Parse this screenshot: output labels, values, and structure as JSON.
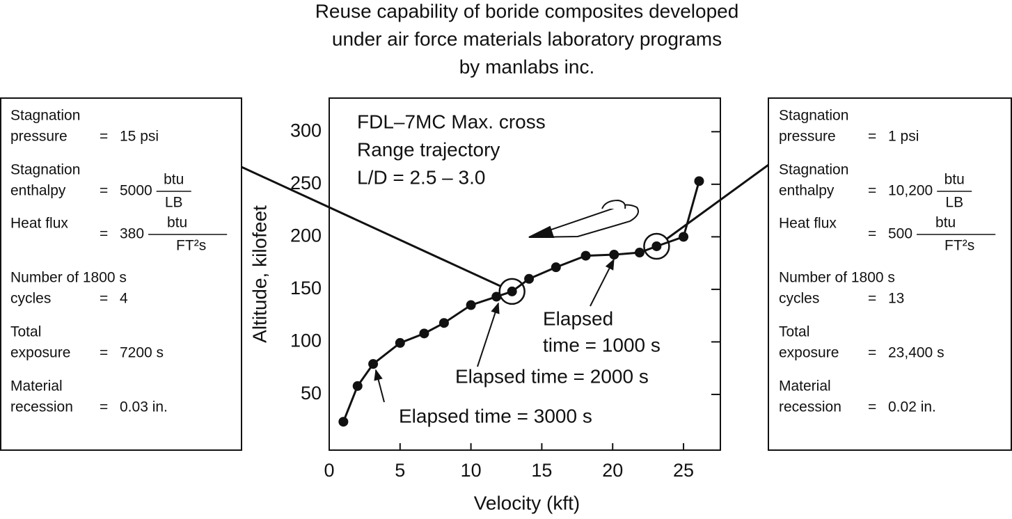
{
  "chart_data": {
    "type": "line",
    "title": [
      "Reuse capability of boride composites developed",
      "under air force materials laboratory programs",
      "by manlabs inc."
    ],
    "x_label": "Velocity (kft)",
    "y_label": "Altitude, kilofeet",
    "annotation": [
      "FDL–7MC Max. cross",
      "Range trajectory",
      "L/D = 2.5 – 3.0"
    ],
    "elapsed_labels": [
      [
        "Elapsed time = 3000 s"
      ],
      [
        "Elapsed time = 2000 s"
      ],
      [
        "Elapsed",
        "time = 1000 s"
      ]
    ],
    "x": [
      1,
      2,
      3.1,
      5,
      6.7,
      8.1,
      10,
      11.8,
      12.9,
      14.1,
      16,
      18.1,
      20.1,
      21.9,
      23.1,
      25,
      26.1
    ],
    "series": [
      {
        "color": "#111111",
        "values": [
          24,
          58,
          79,
          99,
          108,
          118,
          135,
          143,
          148,
          160,
          171,
          182,
          183,
          185,
          191,
          200,
          253
        ]
      }
    ],
    "xlim": [
      0,
      27.6
    ],
    "ylim": [
      -3,
      332
    ],
    "xticks": [
      0,
      5,
      10,
      15,
      20,
      25
    ],
    "yticks": [
      50,
      100,
      150,
      200,
      250,
      300
    ]
  },
  "panels": [
    {
      "sign": "=",
      "rows": [
        {
          "label": [
            "Stagnation",
            "pressure"
          ],
          "value": "15 psi"
        },
        {
          "label": [
            "Stagnation",
            "enthalpy"
          ],
          "value": "5000",
          "unit_num": "btu",
          "unit_den": "LB"
        },
        {
          "label": [
            "Heat flux"
          ],
          "value": "380",
          "unit_num": "btu",
          "unit_den": "FT²s"
        },
        {
          "label": [
            "Number of 1800 s",
            "cycles"
          ],
          "value": "4"
        },
        {
          "label": [
            "Total",
            "exposure"
          ],
          "value": "7200 s"
        },
        {
          "label": [
            "Material",
            "recession"
          ],
          "value": "0.03 in."
        }
      ]
    },
    {
      "sign": "=",
      "rows": [
        {
          "label": [
            "Stagnation",
            "pressure"
          ],
          "value": "1 psi"
        },
        {
          "label": [
            "Stagnation",
            "enthalpy"
          ],
          "value": "10,200",
          "unit_num": "btu",
          "unit_den": "LB"
        },
        {
          "label": [
            "Heat flux"
          ],
          "value": "500",
          "unit_num": "btu",
          "unit_den": "FT²s"
        },
        {
          "label": [
            "Number of 1800 s",
            "cycles"
          ],
          "value": "13"
        },
        {
          "label": [
            "Total",
            "exposure"
          ],
          "value": "23,400 s"
        },
        {
          "label": [
            "Material",
            "recession"
          ],
          "value": "0.02 in."
        }
      ]
    }
  ]
}
